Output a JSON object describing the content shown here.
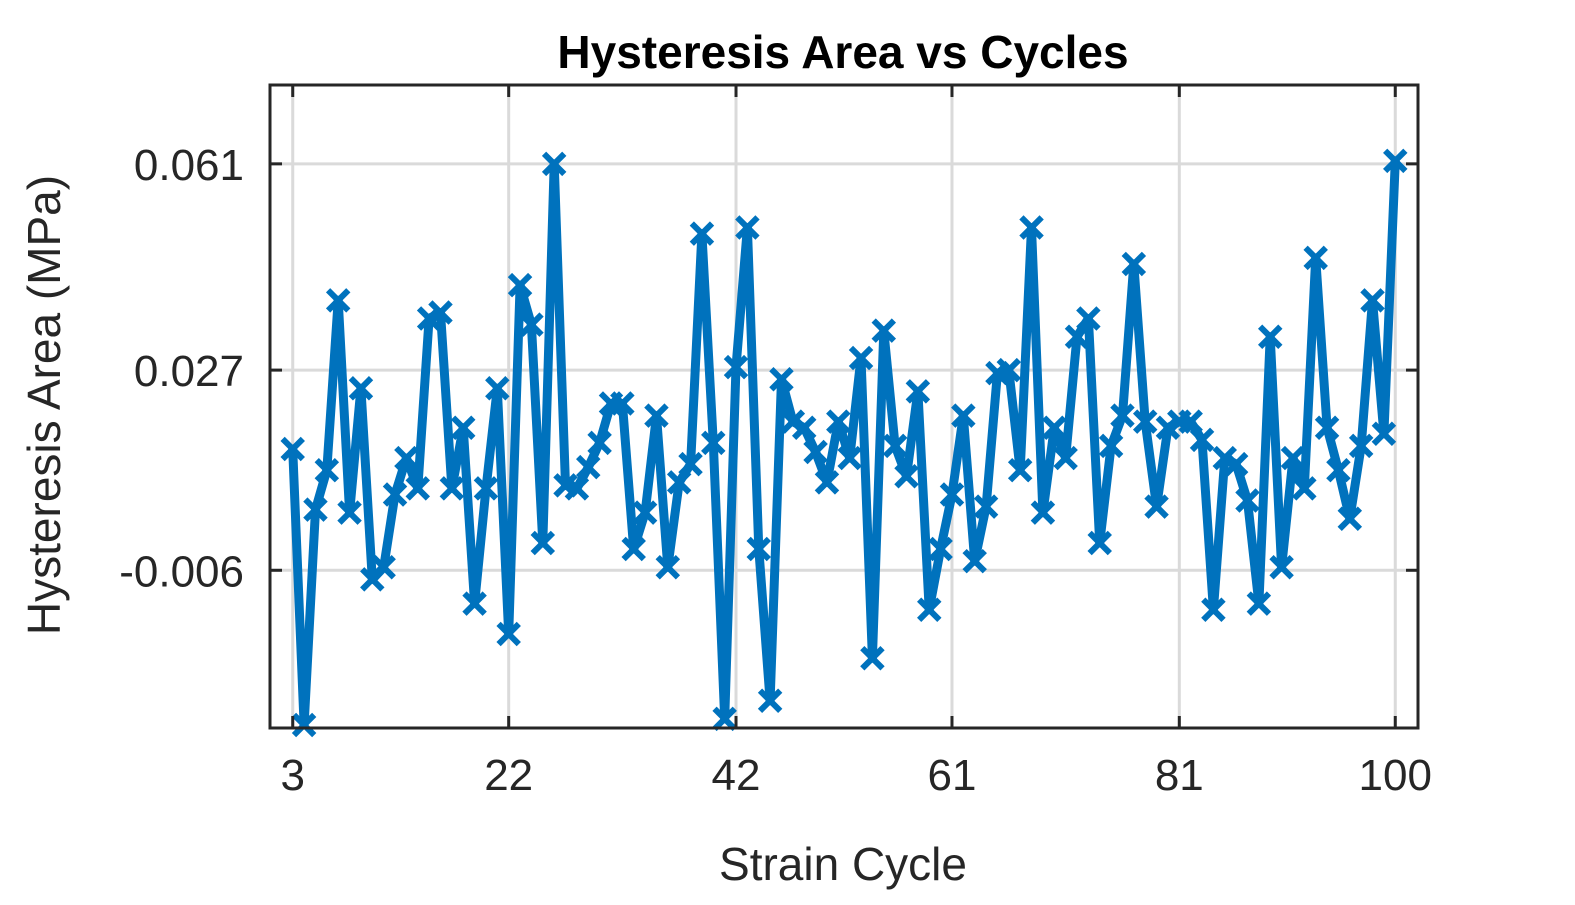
{
  "chart_data": {
    "type": "line",
    "title": "Hysteresis Area vs Cycles",
    "xlabel": "Strain Cycle",
    "ylabel": "Hysteresis Area (MPa)",
    "xlim": [
      1,
      102
    ],
    "ylim": [
      -0.032,
      0.074
    ],
    "xticks": [
      3,
      22,
      42,
      61,
      81,
      100
    ],
    "xtick_labels": [
      "3",
      "22",
      "42",
      "61",
      "81",
      "100"
    ],
    "yticks": [
      -0.006,
      0.027,
      0.061
    ],
    "ytick_labels": [
      "-0.006",
      "0.027",
      "0.061"
    ],
    "grid": true,
    "line_color": "#0072BD",
    "marker": "x",
    "series": [
      {
        "x": [
          3,
          4,
          5,
          6,
          7,
          8,
          9,
          10,
          11,
          12,
          13,
          14,
          15,
          16,
          17,
          18,
          19,
          20,
          21,
          22,
          23,
          24,
          25,
          26,
          27,
          28,
          29,
          30,
          31,
          32,
          33,
          34,
          35,
          36,
          37,
          38,
          39,
          40,
          41,
          42,
          43,
          44,
          45,
          46,
          47,
          48,
          49,
          50,
          51,
          52,
          53,
          54,
          55,
          56,
          57,
          58,
          59,
          60,
          61,
          62,
          63,
          64,
          65,
          66,
          67,
          68,
          69,
          70,
          71,
          72,
          73,
          74,
          75,
          76,
          77,
          78,
          79,
          80,
          81,
          82,
          83,
          84,
          85,
          86,
          87,
          88,
          89,
          90,
          91,
          92,
          93,
          94,
          95,
          96,
          97,
          98,
          99,
          100
        ],
        "y": [
          0.014,
          -0.0315,
          0.004,
          0.0105,
          0.0385,
          0.0035,
          0.024,
          -0.0075,
          -0.0055,
          0.0065,
          0.0125,
          0.0075,
          0.0355,
          0.0365,
          0.0075,
          0.0175,
          -0.0115,
          0.0075,
          0.024,
          -0.0165,
          0.041,
          0.0345,
          -0.0015,
          0.061,
          0.008,
          0.0075,
          0.011,
          0.015,
          0.0215,
          0.0215,
          -0.0025,
          0.0035,
          0.0195,
          -0.0055,
          0.0085,
          0.0115,
          0.0495,
          0.015,
          -0.0305,
          0.0275,
          0.0505,
          -0.0025,
          -0.0275,
          0.0255,
          0.0185,
          0.0175,
          0.0135,
          0.0085,
          0.0185,
          0.0125,
          0.029,
          -0.0205,
          0.0335,
          0.0145,
          0.0095,
          0.0235,
          -0.0125,
          -0.0025,
          0.0065,
          0.0195,
          -0.0045,
          0.0045,
          0.0265,
          0.027,
          0.0105,
          0.0505,
          0.0035,
          0.0175,
          0.0125,
          0.0325,
          0.0355,
          -0.0015,
          0.0145,
          0.0195,
          0.0445,
          0.0185,
          0.0045,
          0.0175,
          0.0185,
          0.0185,
          0.0155,
          -0.0125,
          0.0125,
          0.0115,
          0.0055,
          -0.0115,
          0.0325,
          -0.0055,
          0.0125,
          0.0075,
          0.0455,
          0.0175,
          0.0105,
          0.0025,
          0.0145,
          0.0385,
          0.0165,
          0.0615
        ]
      }
    ]
  }
}
